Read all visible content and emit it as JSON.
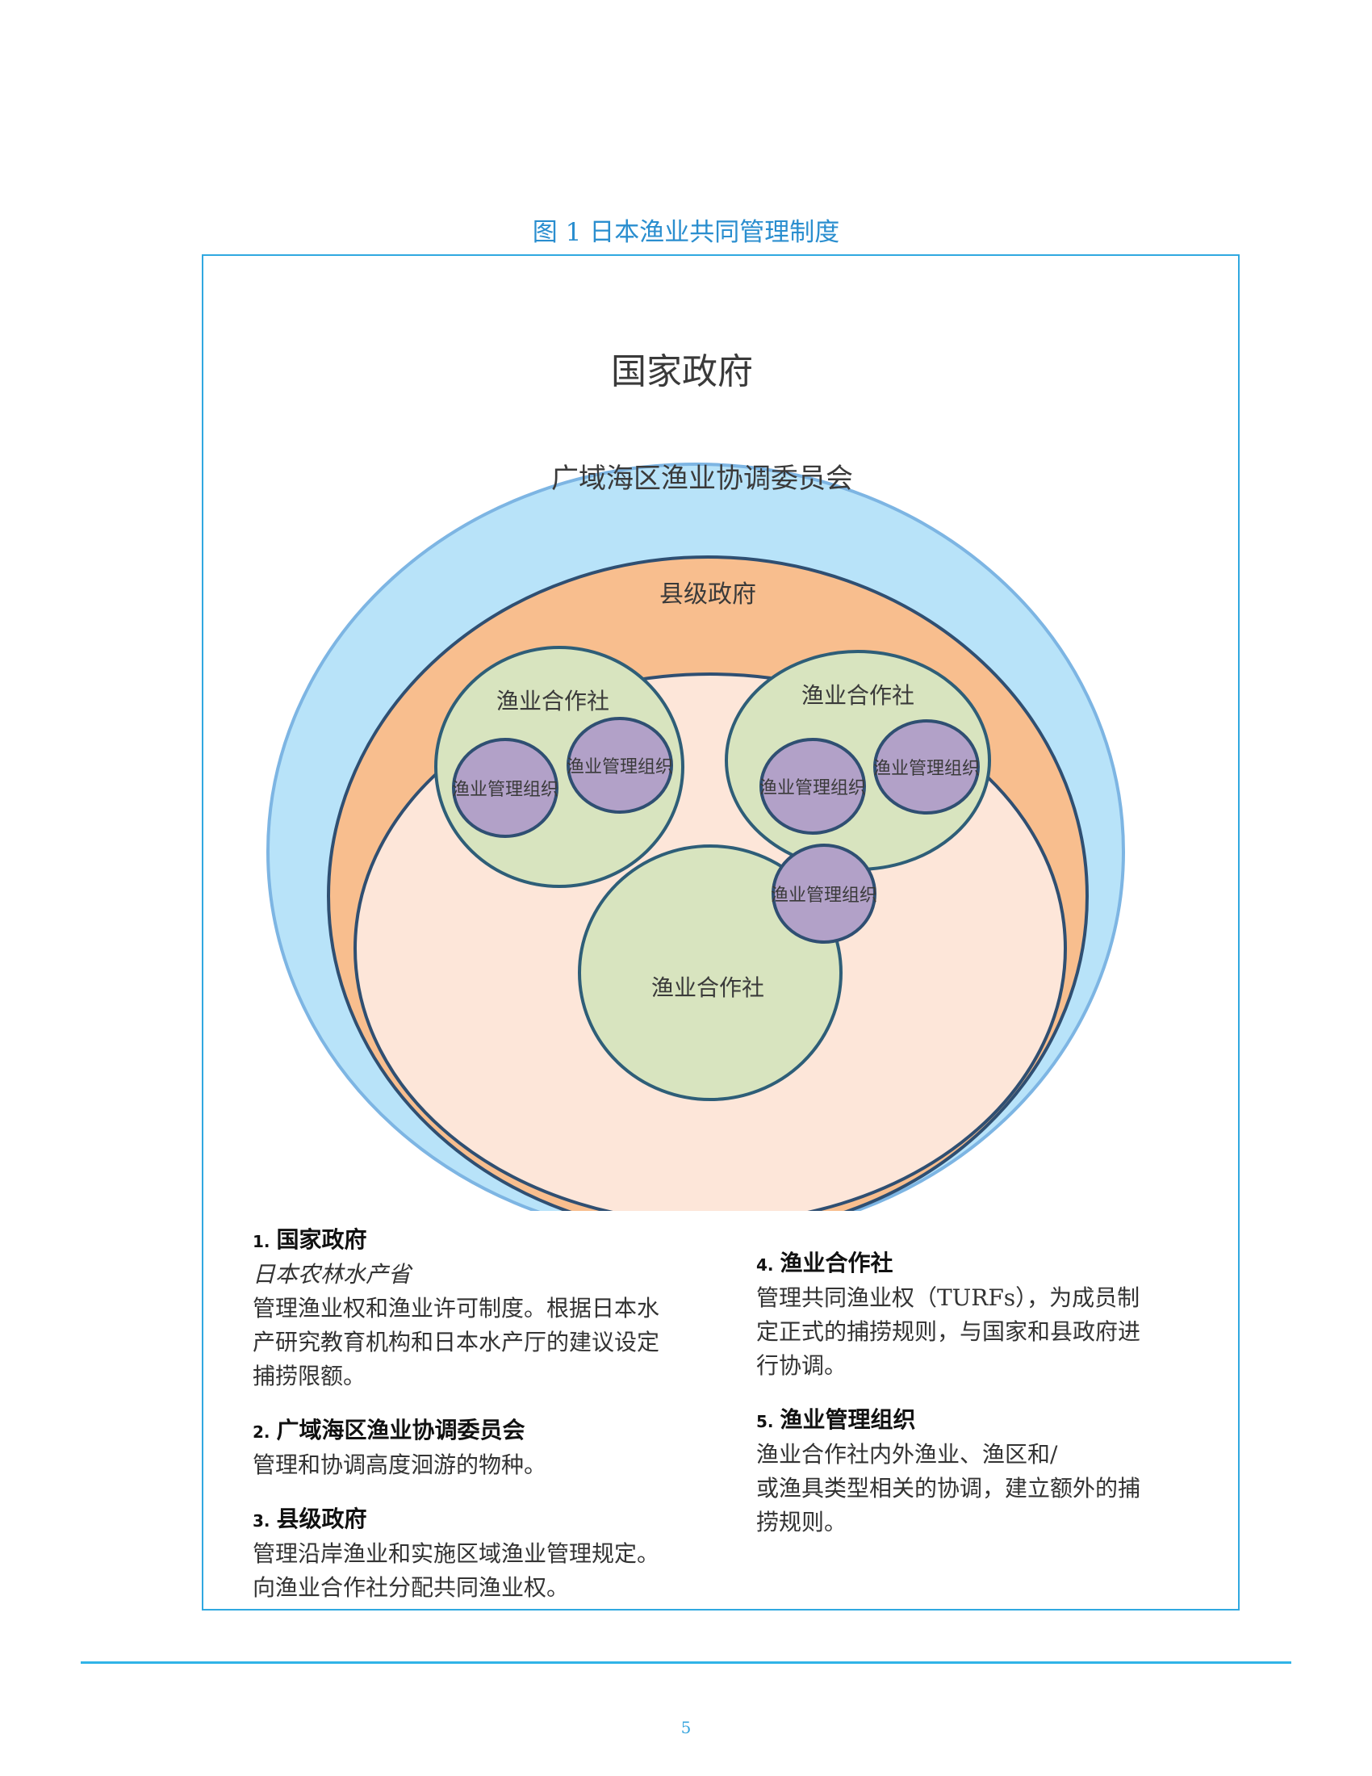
{
  "figure_title": "图 1 日本渔业共同管理制度",
  "diagram": {
    "national": "国家政府",
    "regional": "广域海区渔业协调委员会",
    "prefectural": "县级政府",
    "coop_label": "渔业合作社",
    "org_label": "渔业管理组织",
    "colors": {
      "national_fill": "#b8e3f9",
      "national_stroke": "#7db5e3",
      "regional_fill": "#f8be8e",
      "prefectural_fill": "#fde6d9",
      "coop_fill": "#d8e4bf",
      "org_fill": "#b2a1c8",
      "stroke_dark": "#2f4f72",
      "coop_stroke": "#2e5e78"
    }
  },
  "legend": [
    {
      "num": "1.",
      "title": "国家政府",
      "sub": "日本农林水产省",
      "desc": "管理渔业权和渔业许可制度。根据日本水\n产研究教育机构和日本水产厅的建议设定\n捕捞限额。"
    },
    {
      "num": "2.",
      "title": "广域海区渔业协调委员会",
      "desc": " 管理和协调高度洄游的物种。"
    },
    {
      "num": "3.",
      "title": "县级政府",
      "desc": "管理沿岸渔业和实施区域渔业管理规定。\n向渔业合作社分配共同渔业权。"
    },
    {
      "num": "4.",
      "title": "渔业合作社",
      "desc": "管理共同渔业权（TURFs），为成员制\n定正式的捕捞规则，与国家和县政府进\n行协调。"
    },
    {
      "num": "5.",
      "title": "渔业管理组织",
      "desc": " 渔业合作社内外渔业、渔区和/\n 或渔具类型相关的协调，建立额外的捕\n 捞规则。"
    }
  ],
  "page_number": "5"
}
